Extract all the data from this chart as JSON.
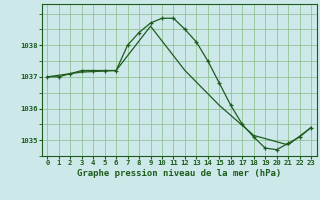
{
  "title": "Graphe pression niveau de la mer (hPa)",
  "background_color": "#cce8e8",
  "plot_bg_color": "#cce8e8",
  "line_color": "#1e5c1e",
  "grid_color": "#88bb88",
  "series1_x": [
    0,
    1,
    2,
    3,
    4,
    5,
    6,
    7,
    8,
    9,
    10,
    11,
    12,
    13,
    14,
    15,
    16,
    17,
    18,
    19,
    20,
    21,
    22,
    23
  ],
  "series1_y": [
    1037.0,
    1037.0,
    1037.1,
    1037.2,
    1037.2,
    1037.2,
    1037.2,
    1038.0,
    1038.4,
    1038.7,
    1038.85,
    1038.85,
    1038.5,
    1038.1,
    1037.5,
    1036.8,
    1036.1,
    1035.5,
    1035.1,
    1034.75,
    1034.7,
    1034.9,
    1035.1,
    1035.4
  ],
  "series2_x": [
    0,
    3,
    6,
    9,
    12,
    15,
    18,
    21,
    23
  ],
  "series2_y": [
    1037.0,
    1037.15,
    1037.2,
    1038.6,
    1037.2,
    1036.1,
    1035.15,
    1034.85,
    1035.4
  ],
  "ylim": [
    1034.5,
    1039.3
  ],
  "xlim": [
    -0.5,
    23.5
  ],
  "yticks": [
    1035,
    1036,
    1037,
    1038
  ],
  "xticks": [
    0,
    1,
    2,
    3,
    4,
    5,
    6,
    7,
    8,
    9,
    10,
    11,
    12,
    13,
    14,
    15,
    16,
    17,
    18,
    19,
    20,
    21,
    22,
    23
  ],
  "title_fontsize": 6.5,
  "tick_fontsize": 5.2,
  "title_color": "#1e5c1e",
  "spine_color": "#1e5c1e"
}
